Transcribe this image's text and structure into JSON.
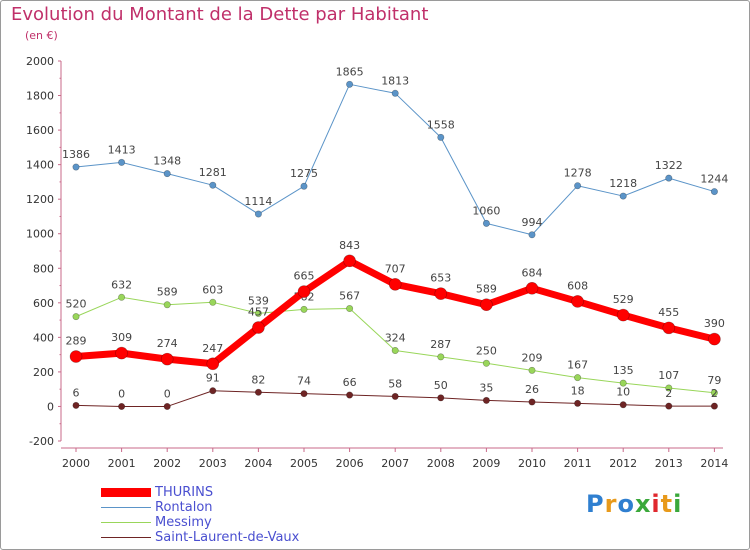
{
  "title": "Evolution du Montant de la Dette par Habitant",
  "subtitle": "(en €)",
  "logo": {
    "letters": [
      "P",
      "r",
      "o",
      "x",
      "i",
      "t",
      "i"
    ],
    "colors": [
      "#2f7fd0",
      "#e89a1b",
      "#2f7fd0",
      "#3aa83a",
      "#e0282e",
      "#e89a1b",
      "#3aa83a"
    ]
  },
  "chart_data": {
    "type": "line",
    "x": [
      "2000",
      "2001",
      "2002",
      "2003",
      "2004",
      "2005",
      "2006",
      "2007",
      "2008",
      "2009",
      "2010",
      "2011",
      "2012",
      "2013",
      "2014"
    ],
    "ylim": [
      -200,
      2000
    ],
    "yticks": [
      "-200",
      "0",
      "200",
      "400",
      "600",
      "800",
      "1000",
      "1200",
      "1400",
      "1600",
      "1800",
      "2000"
    ],
    "grid": false,
    "legend_position": "bottom-left",
    "series": [
      {
        "name": "Rontalon",
        "color": "#5b94c8",
        "values": [
          1386,
          1413,
          1348,
          1281,
          1114,
          1275,
          1865,
          1813,
          1558,
          1060,
          994,
          1278,
          1218,
          1322,
          1244
        ],
        "labels": [
          "1386",
          "1413",
          "1348",
          "1281",
          "1114",
          "1275",
          "1865",
          "1813",
          "1558",
          "1060",
          "994",
          "1278",
          "1218",
          "1322",
          "1244"
        ]
      },
      {
        "name": "Messimy",
        "color": "#99d65a",
        "values": [
          520,
          632,
          589,
          603,
          539,
          562,
          567,
          324,
          287,
          250,
          209,
          167,
          135,
          107,
          79
        ],
        "labels": [
          "520",
          "632",
          "589",
          "603",
          "539",
          "562",
          "567",
          "324",
          "287",
          "250",
          "209",
          "167",
          "135",
          "107",
          "79"
        ]
      },
      {
        "name": "Saint-Laurent-de-Vaux",
        "color": "#6e2424",
        "values": [
          6,
          0,
          0,
          91,
          82,
          74,
          66,
          58,
          50,
          35,
          26,
          18,
          10,
          2,
          2
        ],
        "labels": [
          "6",
          "0",
          "0",
          "91",
          "82",
          "74",
          "66",
          "58",
          "50",
          "35",
          "26",
          "18",
          "10",
          "2",
          "2"
        ]
      },
      {
        "name": "THURINS",
        "color": "#ff0000",
        "values": [
          289,
          309,
          274,
          247,
          457,
          665,
          843,
          707,
          653,
          589,
          684,
          608,
          529,
          455,
          390
        ],
        "labels": [
          "289",
          "309",
          "274",
          "247",
          "457",
          "665",
          "843",
          "707",
          "653",
          "589",
          "684",
          "608",
          "529",
          "455",
          "390"
        ]
      }
    ],
    "legend": [
      {
        "name": "THURINS",
        "color": "#ff0000",
        "thickness": 9
      },
      {
        "name": "Rontalon",
        "color": "#5b94c8",
        "thickness": 1
      },
      {
        "name": "Messimy",
        "color": "#99d65a",
        "thickness": 1
      },
      {
        "name": "Saint-Laurent-de-Vaux",
        "color": "#6e2424",
        "thickness": 1
      }
    ]
  }
}
